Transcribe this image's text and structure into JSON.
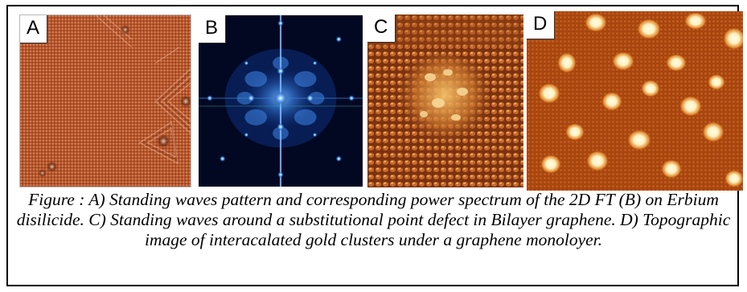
{
  "figure": {
    "panels": [
      {
        "label": "A",
        "content": "Standing waves pattern on Erbium disilicide",
        "colors": {
          "base": "#b5552b",
          "highlight": "#e6a27c"
        }
      },
      {
        "label": "B",
        "content": "2D FT power spectrum",
        "colors": {
          "base": "#020822",
          "spot": "#3b8fff"
        }
      },
      {
        "label": "C",
        "content": "Standing waves around a substitutional point defect in bilayer graphene",
        "colors": {
          "base": "#8a3d14",
          "highlight": "#f2b256"
        }
      },
      {
        "label": "D",
        "content": "Topographic image of intercalated gold clusters under graphene",
        "colors": {
          "base": "#b44a10",
          "spot": "#fff6d2"
        }
      }
    ],
    "caption": "Figure : A) Standing waves pattern and corresponding power spectrum of the 2D FT (B) on Erbium disilicide. C) Standing waves around a substitutional point defect in Bilayer graphene. D) Topographic image of interacalated gold clusters under a graphene monoloyer."
  }
}
